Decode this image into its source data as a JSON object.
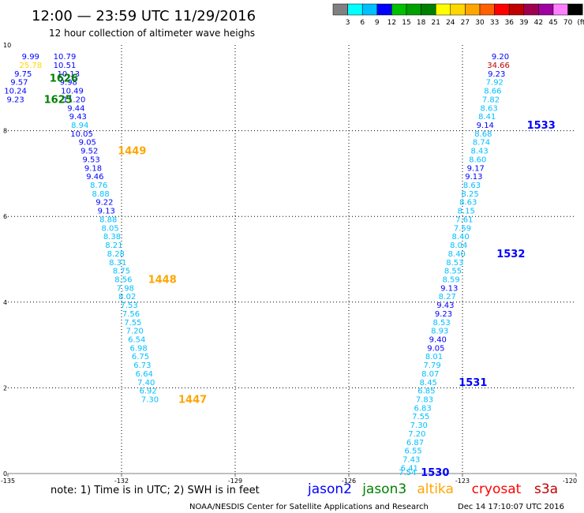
{
  "header": {
    "title": "12:00 — 23:59 UTC 11/29/2016",
    "subtitle": "12 hour collection of altimeter wave heighs"
  },
  "colorbar": {
    "swatches": [
      "#808080",
      "#00ffff",
      "#00bfff",
      "#0000ff",
      "#00c000",
      "#00a000",
      "#008000",
      "#ffff00",
      "#ffd700",
      "#ffa500",
      "#ff6000",
      "#ff0000",
      "#c00000",
      "#a00050",
      "#a000a0",
      "#ff80ff",
      "#000000"
    ],
    "labels": [
      "3",
      "6",
      "9",
      "12",
      "15",
      "18",
      "21",
      "24",
      "27",
      "30",
      "33",
      "36",
      "39",
      "42",
      "45",
      "70",
      "(ft)"
    ]
  },
  "footer": {
    "note": "note: 1) Time is in UTC; 2) SWH is in feet",
    "source": "NOAA/NESDIS Center for Satellite Applications and Research",
    "timestamp": "Dec 14 17:10:07 UTC 2016"
  },
  "legend": [
    {
      "name": "jason2",
      "color": "#0000ff"
    },
    {
      "name": "jason3",
      "color": "#008000"
    },
    {
      "name": "altika",
      "color": "#ffa500"
    },
    {
      "name": "cryosat",
      "color": "#ff0000"
    },
    {
      "name": "s3a",
      "color": "#c00000"
    }
  ],
  "chart_data": {
    "type": "scatter",
    "xlim": [
      -135,
      -120
    ],
    "ylim": [
      0,
      10
    ],
    "x_ticks": [
      "-135",
      "-132",
      "-129",
      "-126",
      "-123",
      "-120"
    ],
    "y_ticks": [
      "0",
      "2",
      "4",
      "6",
      "8",
      "10"
    ],
    "grid": true,
    "points": [
      {
        "x": -134.4,
        "y": 9.74,
        "v": "9.99",
        "color": "#0000ff"
      },
      {
        "x": -134.4,
        "y": 9.54,
        "v": "25.78",
        "color": "#ffd700"
      },
      {
        "x": -134.6,
        "y": 9.34,
        "v": "9.75",
        "color": "#0000ff"
      },
      {
        "x": -134.7,
        "y": 9.14,
        "v": "9.57",
        "color": "#0000ff"
      },
      {
        "x": -134.8,
        "y": 8.94,
        "v": "10.24",
        "color": "#0000ff"
      },
      {
        "x": -134.8,
        "y": 8.74,
        "v": "9.23",
        "color": "#0000ff"
      },
      {
        "x": -133.5,
        "y": 9.74,
        "v": "10.79",
        "color": "#0000ff"
      },
      {
        "x": -133.5,
        "y": 9.54,
        "v": "10.51",
        "color": "#0000ff"
      },
      {
        "x": -133.4,
        "y": 9.34,
        "v": "10.13",
        "color": "#0000ff"
      },
      {
        "x": -133.4,
        "y": 9.14,
        "v": "9.98",
        "color": "#0000ff"
      },
      {
        "x": -133.3,
        "y": 8.94,
        "v": "10.49",
        "color": "#0000ff"
      },
      {
        "x": -133.25,
        "y": 8.74,
        "v": "11.20",
        "color": "#0000ff"
      },
      {
        "x": -133.2,
        "y": 8.54,
        "v": "9.44",
        "color": "#0000ff"
      },
      {
        "x": -133.15,
        "y": 8.34,
        "v": "9.43",
        "color": "#0000ff"
      },
      {
        "x": -133.1,
        "y": 8.14,
        "v": "8.94",
        "color": "#00bfff"
      },
      {
        "x": -133.05,
        "y": 7.94,
        "v": "10.05",
        "color": "#0000ff"
      },
      {
        "x": -132.9,
        "y": 7.74,
        "v": "9.05",
        "color": "#0000ff"
      },
      {
        "x": -132.85,
        "y": 7.54,
        "v": "9.52",
        "color": "#0000ff"
      },
      {
        "x": -132.8,
        "y": 7.34,
        "v": "9.53",
        "color": "#0000ff"
      },
      {
        "x": -132.75,
        "y": 7.14,
        "v": "9.18",
        "color": "#0000ff"
      },
      {
        "x": -132.7,
        "y": 6.94,
        "v": "9.46",
        "color": "#0000ff"
      },
      {
        "x": -132.6,
        "y": 6.74,
        "v": "8.76",
        "color": "#00bfff"
      },
      {
        "x": -132.55,
        "y": 6.54,
        "v": "8.88",
        "color": "#00bfff"
      },
      {
        "x": -132.45,
        "y": 6.34,
        "v": "9.22",
        "color": "#0000ff"
      },
      {
        "x": -132.4,
        "y": 6.14,
        "v": "9.13",
        "color": "#0000ff"
      },
      {
        "x": -132.35,
        "y": 5.94,
        "v": "8.88",
        "color": "#00bfff"
      },
      {
        "x": -132.3,
        "y": 5.74,
        "v": "8.05",
        "color": "#00bfff"
      },
      {
        "x": -132.25,
        "y": 5.54,
        "v": "8.38",
        "color": "#00bfff"
      },
      {
        "x": -132.2,
        "y": 5.34,
        "v": "8.21",
        "color": "#00bfff"
      },
      {
        "x": -132.15,
        "y": 5.14,
        "v": "8.28",
        "color": "#00bfff"
      },
      {
        "x": -132.1,
        "y": 4.94,
        "v": "8.31",
        "color": "#00bfff"
      },
      {
        "x": -132.0,
        "y": 4.74,
        "v": "8.75",
        "color": "#00bfff"
      },
      {
        "x": -131.95,
        "y": 4.54,
        "v": "8.56",
        "color": "#00bfff"
      },
      {
        "x": -131.9,
        "y": 4.34,
        "v": "7.98",
        "color": "#00bfff"
      },
      {
        "x": -131.85,
        "y": 4.14,
        "v": "8.02",
        "color": "#00bfff"
      },
      {
        "x": -131.8,
        "y": 3.94,
        "v": "7.53",
        "color": "#00bfff"
      },
      {
        "x": -131.75,
        "y": 3.74,
        "v": "7.56",
        "color": "#00bfff"
      },
      {
        "x": -131.7,
        "y": 3.54,
        "v": "7.55",
        "color": "#00bfff"
      },
      {
        "x": -131.65,
        "y": 3.34,
        "v": "7.20",
        "color": "#00bfff"
      },
      {
        "x": -131.6,
        "y": 3.14,
        "v": "6.54",
        "color": "#00bfff"
      },
      {
        "x": -131.55,
        "y": 2.94,
        "v": "6.98",
        "color": "#00bfff"
      },
      {
        "x": -131.5,
        "y": 2.74,
        "v": "6.75",
        "color": "#00bfff"
      },
      {
        "x": -131.45,
        "y": 2.54,
        "v": "6.73",
        "color": "#00bfff"
      },
      {
        "x": -131.4,
        "y": 2.34,
        "v": "6.64",
        "color": "#00bfff"
      },
      {
        "x": -131.35,
        "y": 2.14,
        "v": "7.40",
        "color": "#00bfff"
      },
      {
        "x": -131.3,
        "y": 1.94,
        "v": "6.92",
        "color": "#00bfff"
      },
      {
        "x": -131.25,
        "y": 1.74,
        "v": "7.30",
        "color": "#00bfff"
      },
      {
        "x": -122.0,
        "y": 9.74,
        "v": "9.20",
        "color": "#0000ff"
      },
      {
        "x": -122.05,
        "y": 9.54,
        "v": "34.66",
        "color": "#c00000"
      },
      {
        "x": -122.1,
        "y": 9.34,
        "v": "9.23",
        "color": "#0000ff"
      },
      {
        "x": -122.15,
        "y": 9.14,
        "v": "7.92",
        "color": "#00bfff"
      },
      {
        "x": -122.2,
        "y": 8.94,
        "v": "8.66",
        "color": "#00bfff"
      },
      {
        "x": -122.25,
        "y": 8.74,
        "v": "7.82",
        "color": "#00bfff"
      },
      {
        "x": -122.3,
        "y": 8.54,
        "v": "8.63",
        "color": "#00bfff"
      },
      {
        "x": -122.35,
        "y": 8.34,
        "v": "8.41",
        "color": "#00bfff"
      },
      {
        "x": -122.4,
        "y": 8.14,
        "v": "9.14",
        "color": "#0000ff"
      },
      {
        "x": -122.45,
        "y": 7.94,
        "v": "8.68",
        "color": "#00bfff"
      },
      {
        "x": -122.5,
        "y": 7.74,
        "v": "8.74",
        "color": "#00bfff"
      },
      {
        "x": -122.55,
        "y": 7.54,
        "v": "8.43",
        "color": "#00bfff"
      },
      {
        "x": -122.6,
        "y": 7.34,
        "v": "8.60",
        "color": "#00bfff"
      },
      {
        "x": -122.65,
        "y": 7.14,
        "v": "9.17",
        "color": "#0000ff"
      },
      {
        "x": -122.7,
        "y": 6.94,
        "v": "9.13",
        "color": "#0000ff"
      },
      {
        "x": -122.75,
        "y": 6.74,
        "v": "8.63",
        "color": "#00bfff"
      },
      {
        "x": -122.8,
        "y": 6.54,
        "v": "8.25",
        "color": "#00bfff"
      },
      {
        "x": -122.85,
        "y": 6.34,
        "v": "8.63",
        "color": "#00bfff"
      },
      {
        "x": -122.9,
        "y": 6.14,
        "v": "8.15",
        "color": "#00bfff"
      },
      {
        "x": -122.95,
        "y": 5.94,
        "v": "7.61",
        "color": "#00bfff"
      },
      {
        "x": -123.0,
        "y": 5.74,
        "v": "7.59",
        "color": "#00bfff"
      },
      {
        "x": -123.05,
        "y": 5.54,
        "v": "8.40",
        "color": "#00bfff"
      },
      {
        "x": -123.1,
        "y": 5.34,
        "v": "8.04",
        "color": "#00bfff"
      },
      {
        "x": -123.15,
        "y": 5.14,
        "v": "8.40",
        "color": "#00bfff"
      },
      {
        "x": -123.2,
        "y": 4.94,
        "v": "8.53",
        "color": "#00bfff"
      },
      {
        "x": -123.25,
        "y": 4.74,
        "v": "8.55",
        "color": "#00bfff"
      },
      {
        "x": -123.3,
        "y": 4.54,
        "v": "8.59",
        "color": "#00bfff"
      },
      {
        "x": -123.35,
        "y": 4.34,
        "v": "9.13",
        "color": "#0000ff"
      },
      {
        "x": -123.4,
        "y": 4.14,
        "v": "8.27",
        "color": "#00bfff"
      },
      {
        "x": -123.45,
        "y": 3.94,
        "v": "9.43",
        "color": "#0000ff"
      },
      {
        "x": -123.5,
        "y": 3.74,
        "v": "9.23",
        "color": "#0000ff"
      },
      {
        "x": -123.55,
        "y": 3.54,
        "v": "8.53",
        "color": "#00bfff"
      },
      {
        "x": -123.6,
        "y": 3.34,
        "v": "8.93",
        "color": "#00bfff"
      },
      {
        "x": -123.65,
        "y": 3.14,
        "v": "9.40",
        "color": "#0000ff"
      },
      {
        "x": -123.7,
        "y": 2.94,
        "v": "9.05",
        "color": "#0000ff"
      },
      {
        "x": -123.75,
        "y": 2.74,
        "v": "8.01",
        "color": "#00bfff"
      },
      {
        "x": -123.8,
        "y": 2.54,
        "v": "7.79",
        "color": "#00bfff"
      },
      {
        "x": -123.85,
        "y": 2.34,
        "v": "8.07",
        "color": "#00bfff"
      },
      {
        "x": -123.9,
        "y": 2.14,
        "v": "8.45",
        "color": "#00bfff"
      },
      {
        "x": -123.95,
        "y": 1.94,
        "v": "6.85",
        "color": "#00bfff"
      },
      {
        "x": -124.0,
        "y": 1.74,
        "v": "7.83",
        "color": "#00bfff"
      },
      {
        "x": -124.05,
        "y": 1.54,
        "v": "6.83",
        "color": "#00bfff"
      },
      {
        "x": -124.1,
        "y": 1.34,
        "v": "7.55",
        "color": "#00bfff"
      },
      {
        "x": -124.15,
        "y": 1.14,
        "v": "7.30",
        "color": "#00bfff"
      },
      {
        "x": -124.2,
        "y": 0.94,
        "v": "7.20",
        "color": "#00bfff"
      },
      {
        "x": -124.25,
        "y": 0.74,
        "v": "6.87",
        "color": "#00bfff"
      },
      {
        "x": -124.3,
        "y": 0.54,
        "v": "6.55",
        "color": "#00bfff"
      },
      {
        "x": -124.35,
        "y": 0.34,
        "v": "7.43",
        "color": "#00bfff"
      },
      {
        "x": -124.4,
        "y": 0.14,
        "v": "6.41",
        "color": "#00bfff"
      },
      {
        "x": -124.45,
        "y": 0.04,
        "v": "7.54",
        "color": "#00bfff"
      }
    ],
    "pass_labels": [
      {
        "x": -133.9,
        "y": 9.24,
        "text": "1626",
        "color": "#008000"
      },
      {
        "x": -134.05,
        "y": 8.74,
        "text": "1625",
        "color": "#008000"
      },
      {
        "x": -132.1,
        "y": 7.54,
        "text": "1449",
        "color": "#ffa500"
      },
      {
        "x": -131.3,
        "y": 4.54,
        "text": "1448",
        "color": "#ffa500"
      },
      {
        "x": -130.5,
        "y": 1.74,
        "text": "1447",
        "color": "#ffa500"
      },
      {
        "x": -121.3,
        "y": 8.14,
        "text": "1533",
        "color": "#0000ff"
      },
      {
        "x": -122.1,
        "y": 5.14,
        "text": "1532",
        "color": "#0000ff"
      },
      {
        "x": -123.1,
        "y": 2.14,
        "text": "1531",
        "color": "#0000ff"
      },
      {
        "x": -124.1,
        "y": 0.04,
        "text": "1530",
        "color": "#0000ff"
      }
    ]
  }
}
